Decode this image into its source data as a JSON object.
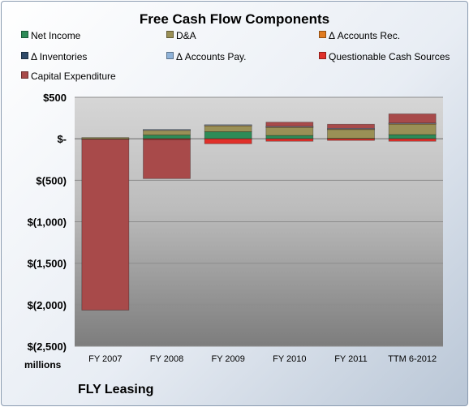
{
  "chart_data": {
    "type": "bar",
    "stacked": true,
    "title": "Free Cash Flow Components",
    "units_label": "millions",
    "company": "FLY Leasing",
    "categories": [
      "FY 2007",
      "FY 2008",
      "FY 2009",
      "FY 2010",
      "FY 2011",
      "TTM 6-2012"
    ],
    "ylim": [
      -2500,
      500
    ],
    "y_ticks": [
      500,
      0,
      -500,
      -1000,
      -1500,
      -2000,
      -2500
    ],
    "y_tick_labels": [
      "$500",
      "$-",
      "$(500)",
      "$(1,000)",
      "$(1,500)",
      "$(2,000)",
      "$(2,500)"
    ],
    "grid": true,
    "legend_position": "top",
    "series": [
      {
        "name": "Net Income",
        "color": "#2e8b57",
        "values": [
          -5,
          45,
          85,
          40,
          5,
          50
        ]
      },
      {
        "name": "D&A",
        "color": "#9a9056",
        "values": [
          15,
          60,
          75,
          100,
          110,
          130
        ]
      },
      {
        "name": "Δ Accounts Rec.",
        "color": "#e07b20",
        "values": [
          0,
          5,
          5,
          5,
          5,
          5
        ]
      },
      {
        "name": "Δ Inventories",
        "color": "#2f4a68",
        "values": [
          0,
          0,
          0,
          0,
          0,
          0
        ]
      },
      {
        "name": "Δ Accounts Pay.",
        "color": "#8fb2d8",
        "values": [
          0,
          3,
          5,
          5,
          5,
          5
        ]
      },
      {
        "name": "Questionable Cash Sources",
        "color": "#e0302a",
        "values": [
          0,
          -10,
          -60,
          -30,
          -20,
          -30
        ]
      },
      {
        "name": "Capital Expenditure",
        "color": "#a84a4a",
        "values": [
          -2060,
          -470,
          0,
          50,
          50,
          110
        ]
      }
    ]
  }
}
